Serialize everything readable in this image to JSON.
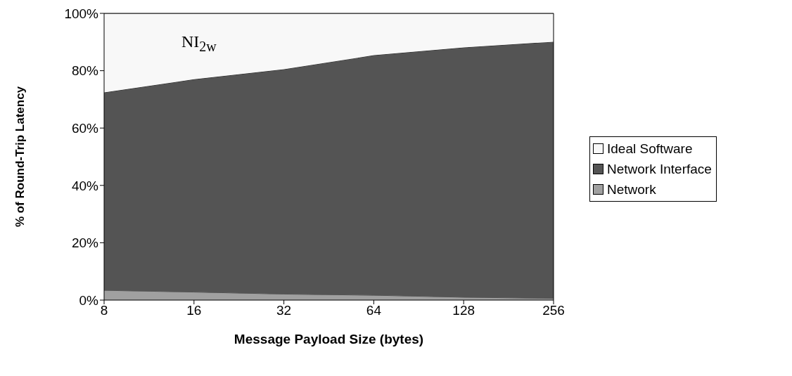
{
  "chart_data": {
    "type": "area",
    "stacked": true,
    "xlabel": "Message Payload Size (bytes)",
    "ylabel": "% of Round-Trip Latency",
    "categories": [
      "8",
      "16",
      "32",
      "64",
      "128",
      "256"
    ],
    "series": [
      {
        "name": "Network",
        "color": "#a0a0a0",
        "values": [
          3.4,
          2.8,
          2.1,
          1.7,
          1.0,
          0.6
        ]
      },
      {
        "name": "Network Interface",
        "color": "#545454",
        "values": [
          69.0,
          74.2,
          78.4,
          83.7,
          87.1,
          89.5
        ]
      },
      {
        "name": "Ideal Software",
        "color": "#f8f8f8",
        "values": [
          27.6,
          23.0,
          19.5,
          14.6,
          11.9,
          9.9
        ]
      }
    ],
    "ylim": [
      0,
      100
    ],
    "yticks": [
      {
        "value": 0,
        "label": "0%"
      },
      {
        "value": 20,
        "label": "20%"
      },
      {
        "value": 40,
        "label": "40%"
      },
      {
        "value": 60,
        "label": "60%"
      },
      {
        "value": 80,
        "label": "80%"
      },
      {
        "value": 100,
        "label": "100%"
      }
    ],
    "grid": false,
    "legend": "right",
    "annotations": [
      {
        "text": "NI$_{2w}$"
      }
    ]
  }
}
